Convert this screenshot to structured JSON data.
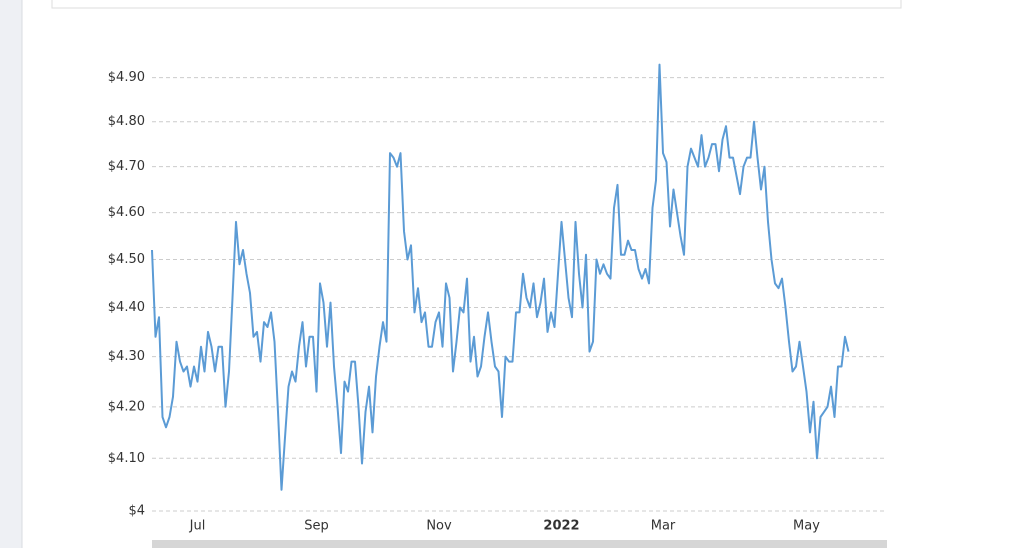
{
  "chart_data": {
    "type": "line",
    "series": [
      {
        "color": "#5b9bd5",
        "values": [
          4.52,
          4.34,
          4.38,
          4.18,
          4.16,
          4.18,
          4.22,
          4.33,
          4.29,
          4.27,
          4.28,
          4.24,
          4.28,
          4.25,
          4.32,
          4.27,
          4.35,
          4.32,
          4.27,
          4.32,
          4.32,
          4.2,
          4.27,
          4.42,
          4.58,
          4.49,
          4.52,
          4.47,
          4.43,
          4.34,
          4.35,
          4.29,
          4.37,
          4.36,
          4.39,
          4.33,
          4.19,
          4.04,
          4.14,
          4.24,
          4.27,
          4.25,
          4.32,
          4.37,
          4.28,
          4.34,
          4.34,
          4.23,
          4.45,
          4.41,
          4.32,
          4.41,
          4.28,
          4.2,
          4.11,
          4.25,
          4.23,
          4.29,
          4.29,
          4.2,
          4.09,
          4.19,
          4.24,
          4.15,
          4.26,
          4.32,
          4.37,
          4.33,
          4.73,
          4.72,
          4.7,
          4.73,
          4.56,
          4.5,
          4.53,
          4.39,
          4.44,
          4.37,
          4.39,
          4.32,
          4.32,
          4.37,
          4.39,
          4.32,
          4.45,
          4.42,
          4.27,
          4.33,
          4.4,
          4.39,
          4.46,
          4.29,
          4.34,
          4.26,
          4.28,
          4.34,
          4.39,
          4.33,
          4.28,
          4.27,
          4.18,
          4.3,
          4.29,
          4.29,
          4.39,
          4.39,
          4.47,
          4.42,
          4.4,
          4.45,
          4.38,
          4.41,
          4.46,
          4.35,
          4.39,
          4.36,
          4.47,
          4.58,
          4.5,
          4.42,
          4.38,
          4.58,
          4.47,
          4.4,
          4.51,
          4.31,
          4.33,
          4.5,
          4.47,
          4.49,
          4.47,
          4.46,
          4.61,
          4.66,
          4.51,
          4.51,
          4.54,
          4.52,
          4.52,
          4.48,
          4.46,
          4.48,
          4.45,
          4.61,
          4.67,
          4.93,
          4.73,
          4.71,
          4.57,
          4.65,
          4.6,
          4.55,
          4.51,
          4.7,
          4.74,
          4.72,
          4.7,
          4.77,
          4.7,
          4.72,
          4.75,
          4.75,
          4.69,
          4.76,
          4.79,
          4.72,
          4.72,
          4.68,
          4.64,
          4.7,
          4.72,
          4.72,
          4.8,
          4.72,
          4.65,
          4.7,
          4.58,
          4.5,
          4.45,
          4.44,
          4.46,
          4.4,
          4.33,
          4.27,
          4.28,
          4.33,
          4.28,
          4.23,
          4.15,
          4.21,
          4.1,
          4.18,
          4.19,
          4.2,
          4.24,
          4.18,
          4.28,
          4.28,
          4.34,
          4.31
        ]
      }
    ],
    "xlim": [
      0,
      210
    ],
    "xticks": [
      {
        "value": 13,
        "label": "Jul"
      },
      {
        "value": 47,
        "label": "Sep"
      },
      {
        "value": 82,
        "label": "Nov"
      },
      {
        "value": 117,
        "label": "2022",
        "bold": true
      },
      {
        "value": 146,
        "label": "Mar"
      },
      {
        "value": 187,
        "label": "May"
      }
    ],
    "ylim": [
      4,
      4.95
    ],
    "yscale": "log",
    "yticks": [
      {
        "value": 4,
        "label": "$4"
      },
      {
        "value": 4.1,
        "label": "$4.10"
      },
      {
        "value": 4.2,
        "label": "$4.20"
      },
      {
        "value": 4.3,
        "label": "$4.30"
      },
      {
        "value": 4.4,
        "label": "$4.40"
      },
      {
        "value": 4.5,
        "label": "$4.50"
      },
      {
        "value": 4.6,
        "label": "$4.60"
      },
      {
        "value": 4.7,
        "label": "$4.70"
      },
      {
        "value": 4.8,
        "label": "$4.80"
      },
      {
        "value": 4.9,
        "label": "$4.90"
      }
    ],
    "grid": true
  }
}
